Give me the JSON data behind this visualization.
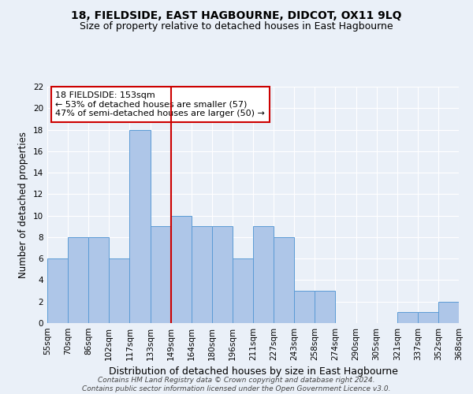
{
  "title": "18, FIELDSIDE, EAST HAGBOURNE, DIDCOT, OX11 9LQ",
  "subtitle": "Size of property relative to detached houses in East Hagbourne",
  "xlabel": "Distribution of detached houses by size in East Hagbourne",
  "ylabel": "Number of detached properties",
  "bar_values": [
    6,
    8,
    8,
    6,
    18,
    9,
    10,
    9,
    9,
    6,
    9,
    8,
    3,
    3,
    0,
    0,
    0,
    1,
    1,
    2
  ],
  "bin_labels": [
    "55sqm",
    "70sqm",
    "86sqm",
    "102sqm",
    "117sqm",
    "133sqm",
    "149sqm",
    "164sqm",
    "180sqm",
    "196sqm",
    "211sqm",
    "227sqm",
    "243sqm",
    "258sqm",
    "274sqm",
    "290sqm",
    "305sqm",
    "321sqm",
    "337sqm",
    "352sqm",
    "368sqm"
  ],
  "bar_color": "#aec6e8",
  "bar_edge_color": "#5b9bd5",
  "background_color": "#eaf0f8",
  "grid_color": "#ffffff",
  "annotation_text": "18 FIELDSIDE: 153sqm\n← 53% of detached houses are smaller (57)\n47% of semi-detached houses are larger (50) →",
  "annotation_box_color": "#ffffff",
  "annotation_box_edge_color": "#cc0000",
  "vline_x": 5.5,
  "vline_color": "#cc0000",
  "ylim": [
    0,
    22
  ],
  "yticks": [
    0,
    2,
    4,
    6,
    8,
    10,
    12,
    14,
    16,
    18,
    20,
    22
  ],
  "footer_line1": "Contains HM Land Registry data © Crown copyright and database right 2024.",
  "footer_line2": "Contains public sector information licensed under the Open Government Licence v3.0.",
  "title_fontsize": 10,
  "subtitle_fontsize": 9,
  "xlabel_fontsize": 9,
  "ylabel_fontsize": 8.5,
  "tick_fontsize": 7.5,
  "footer_fontsize": 6.5,
  "annotation_fontsize": 8
}
